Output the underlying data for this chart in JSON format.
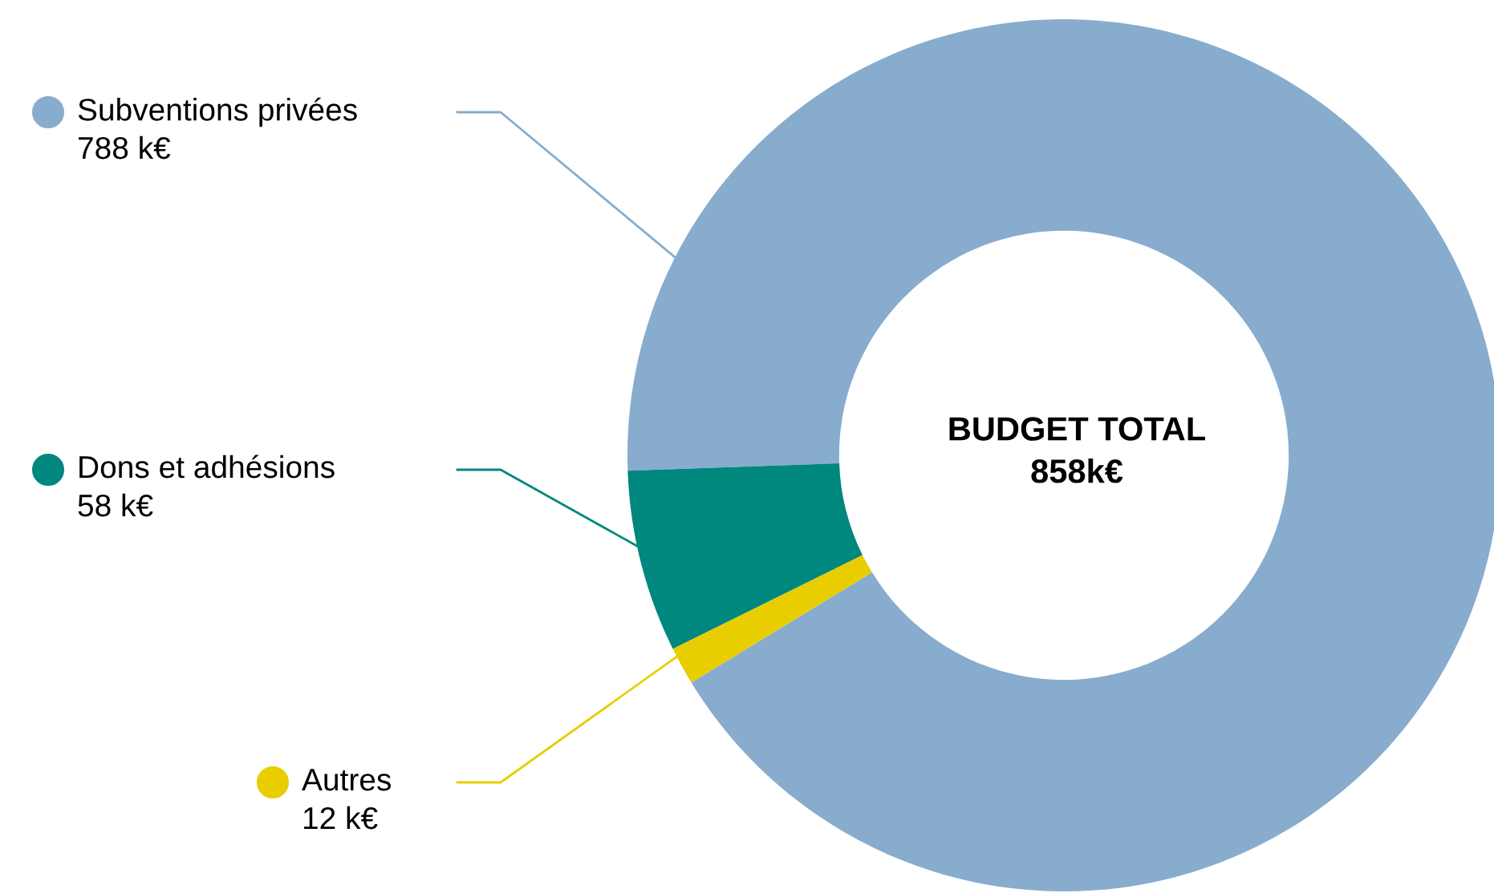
{
  "chart_data": {
    "type": "donut",
    "title": "BUDGET TOTAL",
    "subtitle": "858k€",
    "categories": [
      "Subventions privées",
      "Dons et adhésions",
      "Autres"
    ],
    "values": [
      788,
      58,
      12
    ],
    "value_labels": [
      "788 k€",
      "58 k€",
      "12 k€"
    ],
    "colors": [
      "#87acce",
      "#00877e",
      "#e8cd00"
    ],
    "legend": "left"
  }
}
